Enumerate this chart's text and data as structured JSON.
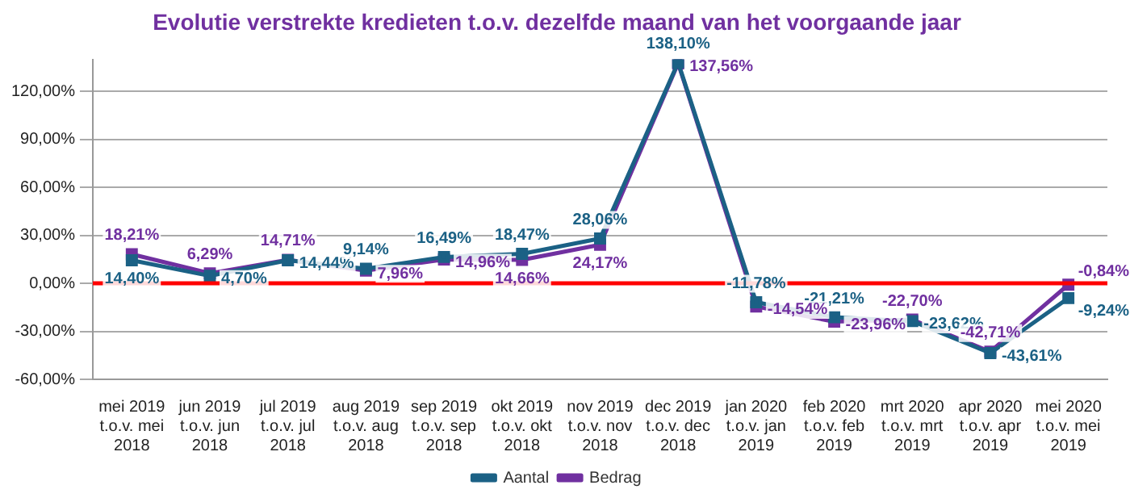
{
  "chart_data": {
    "type": "line",
    "title": "Evolutie verstrekte kredieten t.o.v. dezelfde maand van het voorgaande jaar",
    "categories": [
      "mei 2019 t.o.v. mei 2018",
      "jun 2019 t.o.v. jun 2018",
      "jul 2019 t.o.v. jul 2018",
      "aug 2019 t.o.v. aug 2018",
      "sep 2019 t.o.v. sep 2018",
      "okt 2019 t.o.v. okt 2018",
      "nov 2019 t.o.v. nov 2018",
      "dec 2019 t.o.v. dec 2018",
      "jan 2020 t.o.v. jan 2019",
      "feb 2020 t.o.v. feb 2019",
      "mrt 2020 t.o.v. mrt 2019",
      "apr 2020 t.o.v. apr 2019",
      "mei 2020 t.o.v. mei 2019"
    ],
    "series": [
      {
        "name": "Aantal",
        "color": "#1b6185",
        "values": [
          14.4,
          4.7,
          14.44,
          9.14,
          16.49,
          18.47,
          28.06,
          138.1,
          -11.78,
          -21.21,
          -23.62,
          -43.61,
          -9.24
        ],
        "value_labels": [
          "14,40%",
          "4,70%",
          "14,44%",
          "9,14%",
          "16,49%",
          "18,47%",
          "28,06%",
          "138,10%",
          "-11,78%",
          "-21,21%",
          "-23,62%",
          "-43,61%",
          "-9,24%"
        ]
      },
      {
        "name": "Bedrag",
        "color": "#7030a0",
        "values": [
          18.21,
          6.29,
          14.71,
          7.96,
          14.96,
          14.66,
          24.17,
          137.56,
          -14.54,
          -23.96,
          -22.7,
          -42.71,
          -0.84
        ],
        "value_labels": [
          "18,21%",
          "6,29%",
          "14,71%",
          "7,96%",
          "14,96%",
          "14,66%",
          "24,17%",
          "137,56%",
          "-14,54%",
          "-23,96%",
          "-22,70%",
          "-42,71%",
          "-0,84%"
        ]
      }
    ],
    "ylim": [
      -60,
      140
    ],
    "yticks": [
      {
        "value": -60,
        "label": "-60,00%"
      },
      {
        "value": -30,
        "label": "-30,00%"
      },
      {
        "value": 0,
        "label": "0,00%"
      },
      {
        "value": 30,
        "label": "30,00%"
      },
      {
        "value": 60,
        "label": "60,00%"
      },
      {
        "value": 90,
        "label": "90,00%"
      },
      {
        "value": 120,
        "label": "120,00%"
      }
    ],
    "ref_lines": [
      {
        "axis": "y",
        "value": 0,
        "color": "#ff0000"
      }
    ],
    "grid": "y",
    "legend": "bottom",
    "marker": "square",
    "line_style": "solid"
  }
}
